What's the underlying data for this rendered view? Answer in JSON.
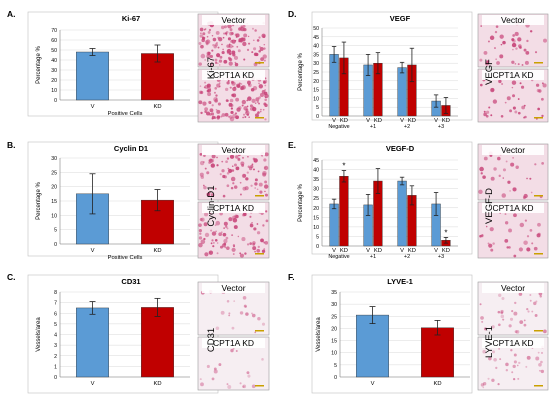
{
  "colors": {
    "vector_bar": "#5b9bd5",
    "kd_bar": "#c00000",
    "bar_stroke": "#2e2e2e",
    "grid": "#d9d9d9",
    "error": "#222222",
    "photo_pink": "#c8467a",
    "photo_bg": "#f3dde6"
  },
  "chart_data": [
    {
      "panel": "A.",
      "type": "bar",
      "title": "Ki-67",
      "ylabel": "Percentage %",
      "xlabel": "Positive Cells",
      "ylim": [
        0,
        70
      ],
      "yticks": [
        0,
        10,
        20,
        30,
        40,
        50,
        60,
        70
      ],
      "categories": [
        "V",
        "KD"
      ],
      "values": [
        48,
        46.5
      ],
      "errors": [
        3.5,
        8.5
      ],
      "photo_side_label": "Ki-67",
      "photos": [
        {
          "caption": "Vector"
        },
        {
          "caption": "CPT1A KD"
        }
      ]
    },
    {
      "panel": "B.",
      "type": "bar",
      "title": "Cyclin D1",
      "ylabel": "Percentage %",
      "xlabel": "Positive Cells",
      "ylim": [
        0,
        30
      ],
      "yticks": [
        0,
        5,
        10,
        15,
        20,
        25,
        30
      ],
      "categories": [
        "V",
        "KD"
      ],
      "values": [
        17.5,
        15.3
      ],
      "errors": [
        7,
        3.7
      ],
      "photo_side_label": "Cyclin-D1",
      "photos": [
        {
          "caption": "Vector"
        },
        {
          "caption": "CPT1A KD"
        }
      ]
    },
    {
      "panel": "C.",
      "type": "bar",
      "title": "CD31",
      "ylabel": "Vessels/area",
      "xlabel": "",
      "ylim": [
        0,
        8
      ],
      "yticks": [
        0,
        1,
        2,
        3,
        4,
        5,
        6,
        7,
        8
      ],
      "categories": [
        "V",
        "KD"
      ],
      "values": [
        6.5,
        6.55
      ],
      "errors": [
        0.6,
        0.85
      ],
      "photo_side_label": "CD31",
      "photos": [
        {
          "caption": "Vector"
        },
        {
          "caption": "CPT1A KD"
        }
      ]
    },
    {
      "panel": "D.",
      "type": "bar",
      "title": "VEGF",
      "ylabel": "Percentage %",
      "xlabel": "",
      "ylim": [
        0,
        50
      ],
      "yticks": [
        0,
        5,
        10,
        15,
        20,
        25,
        30,
        35,
        40,
        45,
        50
      ],
      "categories": [
        "Negative",
        "+1",
        "+2",
        "+3"
      ],
      "pair_labels": [
        "V",
        "KD"
      ],
      "series": [
        {
          "name": "V",
          "values": [
            35,
            29,
            27.5,
            8.5
          ],
          "errors": [
            4.5,
            6,
            3,
            3.5
          ]
        },
        {
          "name": "KD",
          "values": [
            33,
            30,
            29,
            6
          ],
          "errors": [
            9,
            6,
            9.5,
            4.5
          ]
        }
      ],
      "photo_side_label": "VEGF",
      "photos": [
        {
          "caption": "Vector"
        },
        {
          "caption": "CPT1A KD"
        }
      ]
    },
    {
      "panel": "E.",
      "type": "bar",
      "title": "VEGF-D",
      "ylabel": "Percentage %",
      "xlabel": "",
      "ylim": [
        0,
        45
      ],
      "yticks": [
        0,
        5,
        10,
        15,
        20,
        25,
        30,
        35,
        40,
        45
      ],
      "categories": [
        "Negative",
        "+1",
        "+2",
        "+3"
      ],
      "pair_labels": [
        "V",
        "KD"
      ],
      "series": [
        {
          "name": "V",
          "values": [
            22,
            21.5,
            34,
            22
          ],
          "errors": [
            2.5,
            5.5,
            2,
            6
          ]
        },
        {
          "name": "KD",
          "values": [
            36.5,
            34,
            26.5,
            3
          ],
          "errors": [
            3,
            6.5,
            5,
            1.5
          ]
        }
      ],
      "annotations": [
        {
          "text": "*",
          "category": "Negative",
          "series": "KD"
        },
        {
          "text": "*",
          "category": "+3",
          "series": "KD"
        }
      ],
      "photo_side_label": "VEGF-D",
      "photos": [
        {
          "caption": "Vector"
        },
        {
          "caption": "CPT1A KD"
        }
      ]
    },
    {
      "panel": "F.",
      "type": "bar",
      "title": "LYVE-1",
      "ylabel": "Vessels/area",
      "xlabel": "",
      "ylim": [
        0,
        35
      ],
      "yticks": [
        0,
        5,
        10,
        15,
        20,
        25,
        30,
        35
      ],
      "categories": [
        "V",
        "KD"
      ],
      "values": [
        25.5,
        20.3
      ],
      "errors": [
        3.5,
        3
      ],
      "photo_side_label": "LYVE-1",
      "photos": [
        {
          "caption": "Vector"
        },
        {
          "caption": "CPT1A KD"
        }
      ]
    }
  ]
}
